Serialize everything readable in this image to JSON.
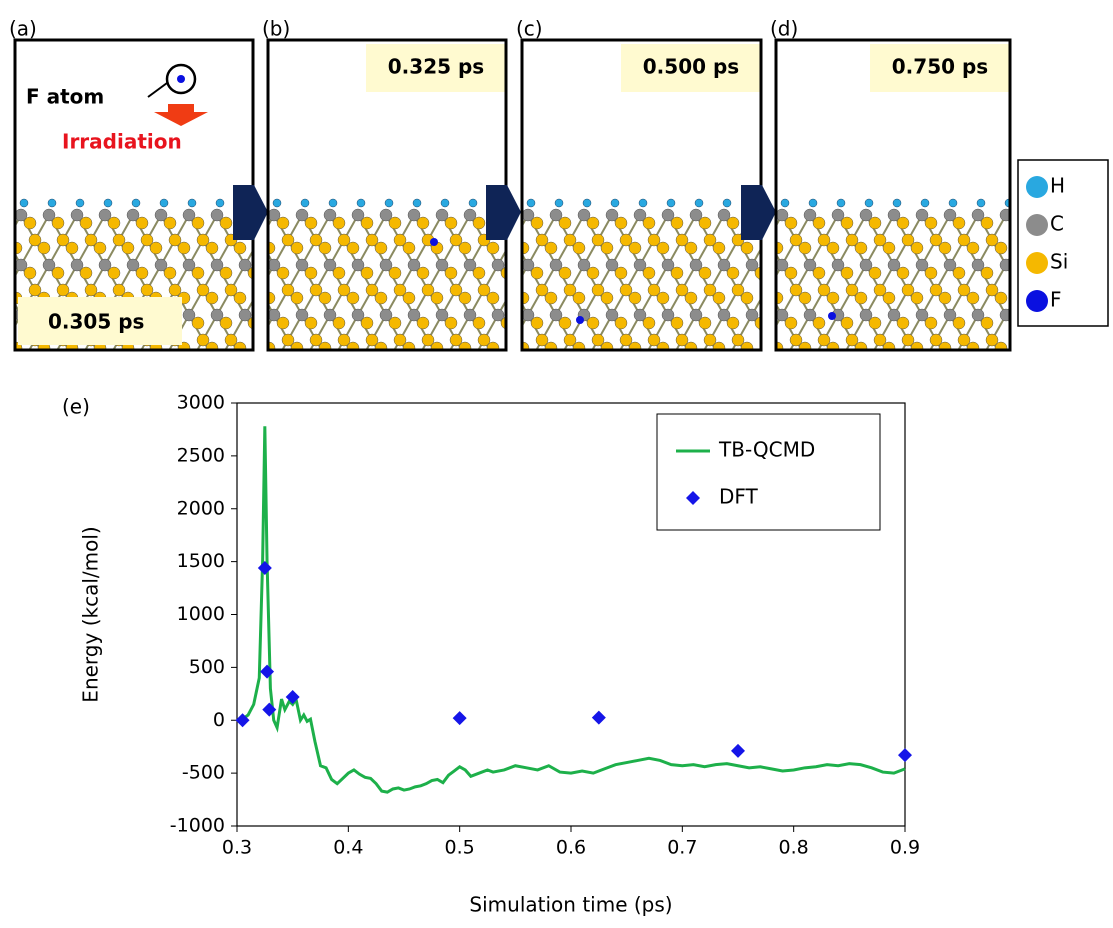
{
  "panels": [
    {
      "label": "(a)",
      "time": "0.305 ps",
      "annotations": {
        "atom": "F atom",
        "beam": "Irradiation"
      }
    },
    {
      "label": "(b)",
      "time": "0.325 ps"
    },
    {
      "label": "(c)",
      "time": "0.500 ps"
    },
    {
      "label": "(d)",
      "time": "0.750 ps"
    }
  ],
  "atom_legend": [
    {
      "label": "H",
      "color": "#29a8e0"
    },
    {
      "label": "C",
      "color": "#8c8c8c"
    },
    {
      "label": "Si",
      "color": "#f5b800"
    },
    {
      "label": "F",
      "color": "#0a10e0"
    }
  ],
  "chart_data": {
    "type": "line",
    "panel_label": "(e)",
    "x_label": "Simulation time (ps)",
    "y_label": "Energy (kcal/mol)",
    "xlim": [
      0.3,
      0.9
    ],
    "xticks": [
      0.3,
      0.4,
      0.5,
      0.6,
      0.7,
      0.8,
      0.9
    ],
    "ylim": [
      -1000,
      3000
    ],
    "yticks": [
      -1000,
      -500,
      0,
      500,
      1000,
      1500,
      2000,
      2500,
      3000
    ],
    "legend": "upper right",
    "grid": false,
    "series": [
      {
        "name": "TB-QCMD",
        "type": "line",
        "color": "#1db04a",
        "x": [
          0.3,
          0.305,
          0.31,
          0.315,
          0.32,
          0.323,
          0.325,
          0.327,
          0.33,
          0.333,
          0.336,
          0.34,
          0.343,
          0.347,
          0.35,
          0.353,
          0.357,
          0.36,
          0.363,
          0.366,
          0.37,
          0.375,
          0.38,
          0.385,
          0.39,
          0.395,
          0.4,
          0.405,
          0.41,
          0.415,
          0.42,
          0.425,
          0.43,
          0.435,
          0.44,
          0.445,
          0.45,
          0.455,
          0.46,
          0.465,
          0.47,
          0.475,
          0.48,
          0.485,
          0.49,
          0.495,
          0.5,
          0.505,
          0.51,
          0.515,
          0.52,
          0.525,
          0.53,
          0.54,
          0.55,
          0.56,
          0.57,
          0.58,
          0.59,
          0.6,
          0.61,
          0.62,
          0.63,
          0.64,
          0.65,
          0.66,
          0.67,
          0.68,
          0.69,
          0.7,
          0.71,
          0.72,
          0.73,
          0.74,
          0.75,
          0.76,
          0.77,
          0.78,
          0.79,
          0.8,
          0.81,
          0.82,
          0.83,
          0.84,
          0.85,
          0.86,
          0.87,
          0.88,
          0.89,
          0.9
        ],
        "values": [
          0,
          10,
          50,
          150,
          400,
          1500,
          2780,
          1500,
          300,
          0,
          -70,
          200,
          100,
          180,
          150,
          200,
          0,
          50,
          -10,
          10,
          -200,
          -430,
          -450,
          -560,
          -600,
          -550,
          -500,
          -470,
          -510,
          -540,
          -550,
          -600,
          -670,
          -680,
          -650,
          -640,
          -660,
          -650,
          -630,
          -620,
          -600,
          -570,
          -560,
          -590,
          -520,
          -480,
          -440,
          -470,
          -530,
          -510,
          -490,
          -470,
          -490,
          -470,
          -430,
          -450,
          -470,
          -430,
          -490,
          -500,
          -480,
          -500,
          -460,
          -420,
          -400,
          -380,
          -360,
          -380,
          -420,
          -430,
          -420,
          -440,
          -420,
          -410,
          -430,
          -450,
          -440,
          -460,
          -480,
          -470,
          -450,
          -440,
          -420,
          -430,
          -410,
          -420,
          -450,
          -490,
          -500,
          -460
        ]
      },
      {
        "name": "DFT",
        "type": "scatter",
        "color": "#1515e8",
        "x": [
          0.305,
          0.325,
          0.327,
          0.329,
          0.35,
          0.5,
          0.625,
          0.75,
          0.9
        ],
        "values": [
          0,
          1440,
          460,
          100,
          220,
          20,
          25,
          -290,
          -330
        ]
      }
    ]
  }
}
